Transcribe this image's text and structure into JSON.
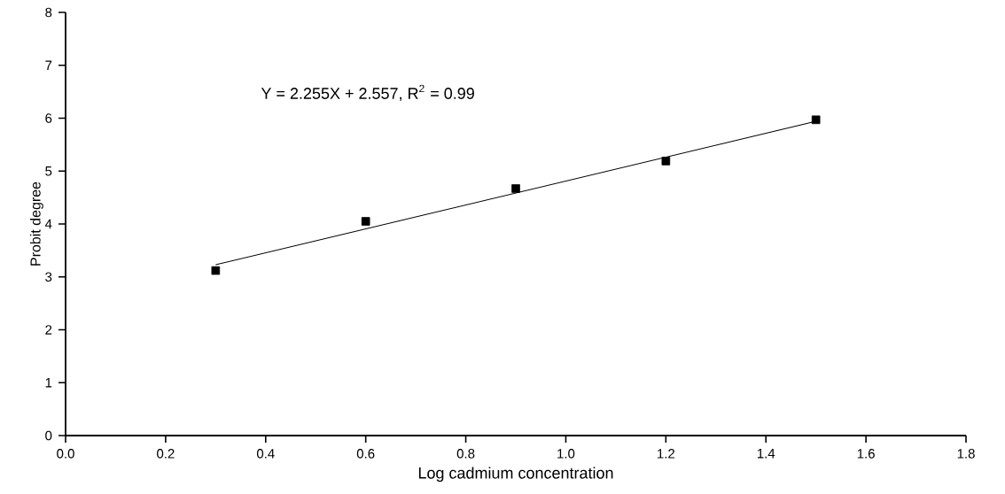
{
  "chart_data": {
    "type": "scatter",
    "xlabel": "Log cadmium concentration",
    "ylabel": "Probit degree",
    "annotations": [
      "Y = 2.255X + 2.557, R$^{2}$ = 0.99"
    ],
    "series": [
      {
        "color": "#000000",
        "marker": "square",
        "x": [
          0.3,
          0.6,
          0.9,
          1.2,
          1.5
        ],
        "values": [
          3.12,
          4.05,
          4.67,
          5.19,
          5.97
        ]
      },
      {
        "type": "line",
        "color": "#000000",
        "marker": "none",
        "line_style": "solid",
        "x": [
          0.3,
          1.5
        ],
        "values": [
          3.23,
          5.94
        ]
      }
    ],
    "xlim": [
      0,
      1.8
    ],
    "ylim": [
      0,
      8
    ],
    "xticks": [
      {
        "value": 0,
        "label": "0.0"
      },
      {
        "value": 0.2,
        "label": "0.2"
      },
      {
        "value": 0.4,
        "label": "0.4"
      },
      {
        "value": 0.6,
        "label": "0.6"
      },
      {
        "value": 0.8,
        "label": "0.8"
      },
      {
        "value": 1.0,
        "label": "1.0"
      },
      {
        "value": 1.2,
        "label": "1.2"
      },
      {
        "value": 1.4,
        "label": "1.4"
      },
      {
        "value": 1.6,
        "label": "1.6"
      },
      {
        "value": 1.8,
        "label": "1.8"
      }
    ],
    "yticks": [
      0,
      1,
      2,
      3,
      4,
      5,
      6,
      7,
      8
    ],
    "grid": false
  }
}
